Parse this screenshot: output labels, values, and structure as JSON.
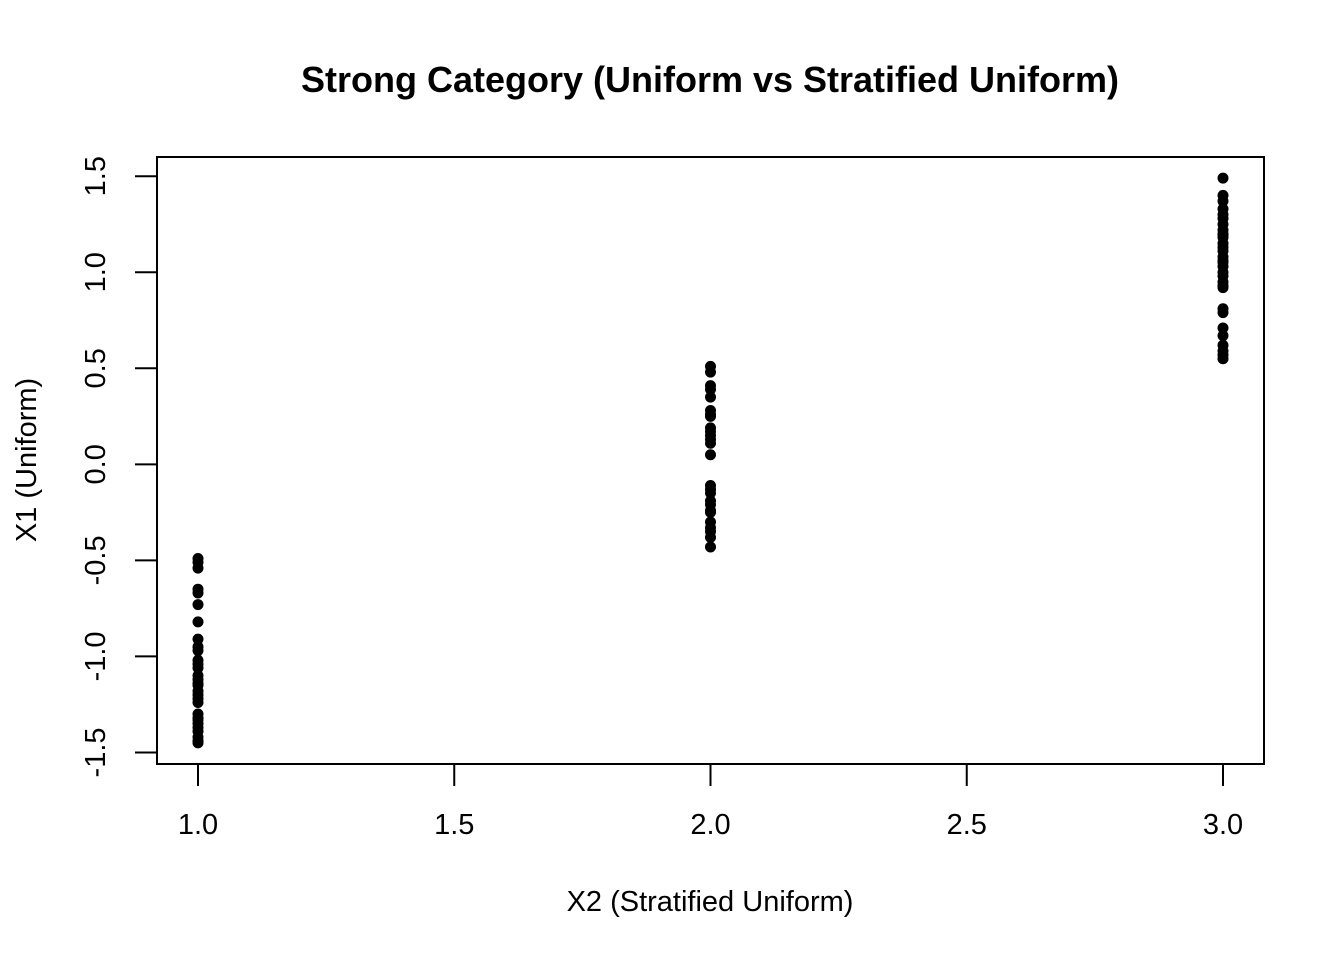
{
  "chart_data": {
    "type": "scatter",
    "title": "Strong Category (Uniform vs Stratified Uniform)",
    "xlabel": "X2 (Stratified Uniform)",
    "ylabel": "X1 (Uniform)",
    "xlim": [
      0.92,
      3.08
    ],
    "ylim": [
      -1.56,
      1.6
    ],
    "xticks": [
      1.0,
      1.5,
      2.0,
      2.5,
      3.0
    ],
    "xtick_labels": [
      "1.0",
      "1.5",
      "2.0",
      "2.5",
      "3.0"
    ],
    "yticks": [
      -1.5,
      -1.0,
      -0.5,
      0.0,
      0.5,
      1.0,
      1.5
    ],
    "ytick_labels": [
      "-1.5",
      "-1.0",
      "-0.5",
      "0.0",
      "0.5",
      "1.0",
      "1.5"
    ],
    "grid": false,
    "point_color": "#000000",
    "series": [
      {
        "x": [
          1,
          1,
          1,
          1,
          1,
          1,
          1,
          1,
          1,
          1,
          1,
          1,
          1,
          1,
          1,
          1,
          1,
          1,
          1,
          1,
          1,
          1,
          1,
          1,
          1,
          1,
          1,
          1,
          1,
          1
        ],
        "y": [
          -0.49,
          -0.51,
          -0.54,
          -0.65,
          -0.67,
          -0.73,
          -0.82,
          -0.91,
          -0.95,
          -0.97,
          -1.02,
          -1.04,
          -1.06,
          -1.1,
          -1.12,
          -1.14,
          -1.15,
          -1.18,
          -1.2,
          -1.22,
          -1.24,
          -1.3,
          -1.32,
          -1.35,
          -1.37,
          -1.39,
          -1.42,
          -1.44,
          -1.45,
          -1.33
        ]
      },
      {
        "x": [
          2,
          2,
          2,
          2,
          2,
          2,
          2,
          2,
          2,
          2,
          2,
          2,
          2,
          2,
          2,
          2,
          2,
          2,
          2,
          2,
          2,
          2,
          2,
          2,
          2,
          2
        ],
        "y": [
          0.51,
          0.48,
          0.41,
          0.39,
          0.35,
          0.28,
          0.25,
          0.19,
          0.17,
          0.13,
          0.11,
          0.05,
          -0.11,
          -0.13,
          -0.15,
          -0.19,
          -0.21,
          -0.25,
          -0.3,
          -0.33,
          -0.35,
          -0.38,
          -0.43,
          0.26,
          -0.24,
          0.15
        ]
      },
      {
        "x": [
          3,
          3,
          3,
          3,
          3,
          3,
          3,
          3,
          3,
          3,
          3,
          3,
          3,
          3,
          3,
          3,
          3,
          3,
          3,
          3,
          3,
          3,
          3,
          3,
          3,
          3,
          3,
          3,
          3,
          3,
          3
        ],
        "y": [
          1.49,
          1.4,
          1.37,
          1.33,
          1.3,
          1.28,
          1.25,
          1.22,
          1.2,
          1.18,
          1.15,
          1.13,
          1.11,
          1.08,
          1.05,
          1.03,
          1.0,
          0.98,
          0.95,
          0.93,
          0.92,
          0.81,
          0.79,
          0.71,
          0.67,
          0.62,
          0.59,
          0.57,
          0.55,
          1.06,
          1.19
        ]
      }
    ]
  }
}
